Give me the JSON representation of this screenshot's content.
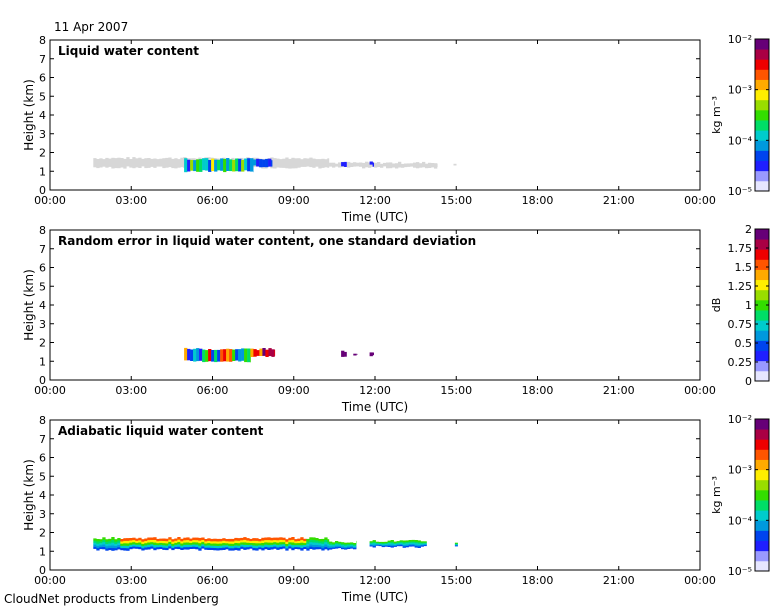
{
  "header": {
    "date": "11 Apr 2007"
  },
  "footer": {
    "credit": "CloudNet products from Lindenberg"
  },
  "colormap": [
    "#e6e6ff",
    "#9999ff",
    "#1f1fff",
    "#0044ee",
    "#0099dd",
    "#00cccc",
    "#00dd66",
    "#33dd00",
    "#99dd00",
    "#ffee00",
    "#ffaa00",
    "#ff5500",
    "#ee0000",
    "#aa0044",
    "#660077"
  ],
  "chart_data": [
    {
      "type": "heatmap",
      "title": "Liquid water content",
      "xlabel": "Time (UTC)",
      "ylabel": "Height (km)",
      "x_ticks": [
        "00:00",
        "03:00",
        "06:00",
        "09:00",
        "12:00",
        "15:00",
        "18:00",
        "21:00",
        "00:00"
      ],
      "y_ticks": [
        "0",
        "1",
        "2",
        "3",
        "4",
        "5",
        "6",
        "7",
        "8"
      ],
      "ylim": [
        0,
        8
      ],
      "xlim_hours": [
        0,
        24
      ],
      "colorbar": {
        "label": "kg m⁻³",
        "scale": "log",
        "range": [
          1e-05,
          0.01
        ],
        "ticks": [
          "10⁻²",
          "10⁻³",
          "10⁻⁴",
          "10⁻⁵"
        ]
      },
      "features": [
        {
          "kind": "gray",
          "t0": 1.6,
          "t1": 10.3,
          "zlo": 1.2,
          "zhi": 1.7
        },
        {
          "kind": "gray",
          "t0": 10.3,
          "t1": 14.3,
          "zlo": 1.2,
          "zhi": 1.45
        },
        {
          "kind": "gray",
          "t0": 14.9,
          "t1": 15.0,
          "zlo": 1.3,
          "zhi": 1.4
        },
        {
          "kind": "color",
          "t0": 4.95,
          "t1": 7.5,
          "zlo": 1.0,
          "zhi": 1.65,
          "vmin": 2,
          "vmax": 9
        },
        {
          "kind": "color",
          "t0": 7.5,
          "t1": 8.2,
          "zlo": 1.25,
          "zhi": 1.65,
          "vmin": 2,
          "vmax": 4
        },
        {
          "kind": "color",
          "t0": 10.75,
          "t1": 10.95,
          "zlo": 1.25,
          "zhi": 1.55,
          "vmin": 2,
          "vmax": 3
        },
        {
          "kind": "color",
          "t0": 11.8,
          "t1": 11.95,
          "zlo": 1.3,
          "zhi": 1.5,
          "vmin": 2,
          "vmax": 2
        }
      ]
    },
    {
      "type": "heatmap",
      "title": "Random error in liquid water content, one standard deviation",
      "xlabel": "Time (UTC)",
      "ylabel": "Height (km)",
      "x_ticks": [
        "00:00",
        "03:00",
        "06:00",
        "09:00",
        "12:00",
        "15:00",
        "18:00",
        "21:00",
        "00:00"
      ],
      "y_ticks": [
        "0",
        "1",
        "2",
        "3",
        "4",
        "5",
        "6",
        "7",
        "8"
      ],
      "ylim": [
        0,
        8
      ],
      "xlim_hours": [
        0,
        24
      ],
      "colorbar": {
        "label": "dB",
        "scale": "linear",
        "range": [
          0,
          2
        ],
        "ticks": [
          "2",
          "1.75",
          "1.5",
          "1.25",
          "1",
          "0.75",
          "0.5",
          "0.25",
          "0"
        ]
      },
      "features": [
        {
          "kind": "color",
          "t0": 4.95,
          "t1": 7.4,
          "zlo": 1.0,
          "zhi": 1.65,
          "vmin": 2,
          "vmax": 13
        },
        {
          "kind": "color",
          "t0": 7.4,
          "t1": 8.3,
          "zlo": 1.25,
          "zhi": 1.65,
          "vmin": 10,
          "vmax": 14
        },
        {
          "kind": "color",
          "t0": 10.75,
          "t1": 10.95,
          "zlo": 1.25,
          "zhi": 1.55,
          "vmin": 14,
          "vmax": 14
        },
        {
          "kind": "color",
          "t0": 11.2,
          "t1": 11.35,
          "zlo": 1.3,
          "zhi": 1.45,
          "vmin": 14,
          "vmax": 14
        },
        {
          "kind": "color",
          "t0": 11.8,
          "t1": 11.95,
          "zlo": 1.3,
          "zhi": 1.5,
          "vmin": 14,
          "vmax": 14
        }
      ]
    },
    {
      "type": "heatmap",
      "title": "Adiabatic liquid water content",
      "xlabel": "Time (UTC)",
      "ylabel": "Height (km)",
      "x_ticks": [
        "00:00",
        "03:00",
        "06:00",
        "09:00",
        "12:00",
        "15:00",
        "18:00",
        "21:00",
        "00:00"
      ],
      "y_ticks": [
        "0",
        "1",
        "2",
        "3",
        "4",
        "5",
        "6",
        "7",
        "8"
      ],
      "ylim": [
        0,
        8
      ],
      "xlim_hours": [
        0,
        24
      ],
      "colorbar": {
        "label": "kg m⁻³",
        "scale": "log",
        "range": [
          1e-05,
          0.01
        ],
        "ticks": [
          "10⁻²",
          "10⁻³",
          "10⁻⁴",
          "10⁻⁵"
        ]
      },
      "features": [
        {
          "kind": "layer",
          "t0": 1.6,
          "t1": 10.3,
          "zlo": 1.1,
          "zhi": 1.7
        },
        {
          "kind": "layer",
          "t0": 10.3,
          "t1": 11.3,
          "zlo": 1.15,
          "zhi": 1.5
        },
        {
          "kind": "layer",
          "t0": 11.8,
          "t1": 13.9,
          "zlo": 1.25,
          "zhi": 1.55
        },
        {
          "kind": "layer",
          "t0": 14.95,
          "t1": 15.05,
          "zlo": 1.3,
          "zhi": 1.45
        }
      ]
    }
  ]
}
